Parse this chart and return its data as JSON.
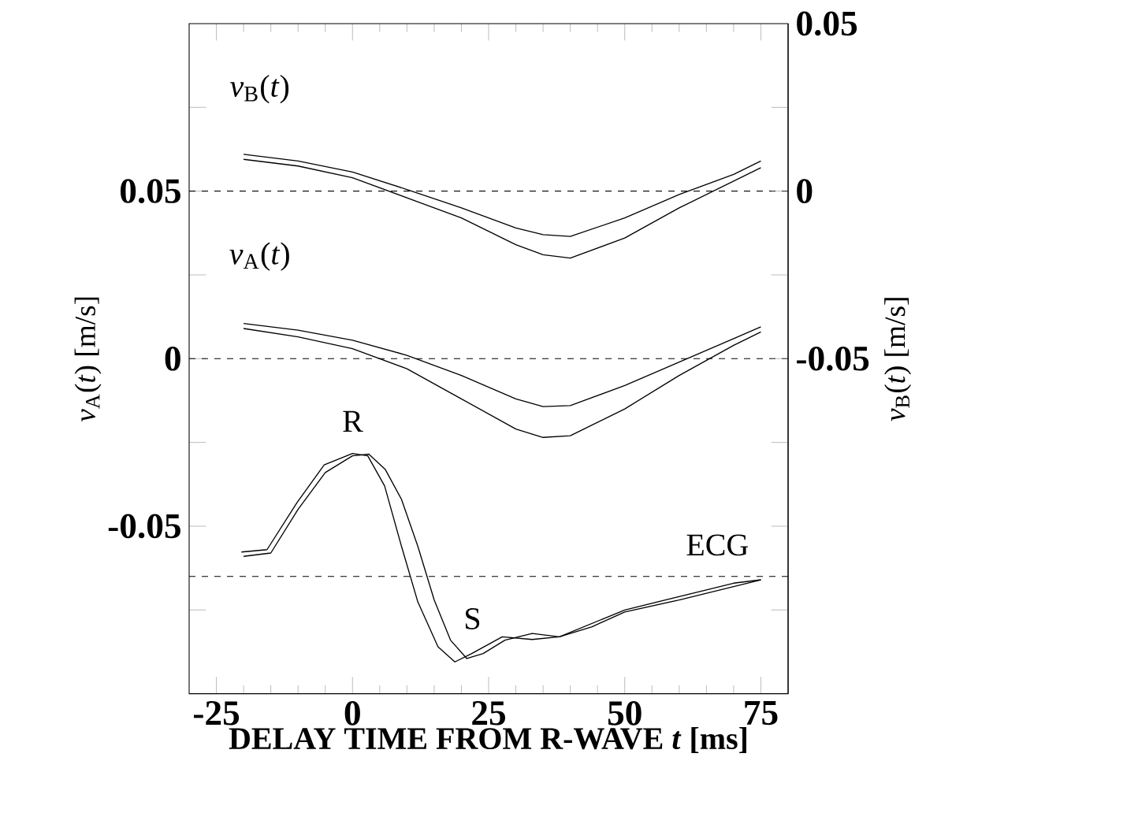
{
  "chart_data": {
    "type": "line",
    "xlabel": "DELAY TIME FROM R-WAVE *t* [ms]",
    "ylabel": "*v*$_{A}$(*t*) [m/s]",
    "y2label": "*v*$_{B}$(*t*) [m/s]",
    "xlim": [
      -30,
      80
    ],
    "xticks": [
      -25,
      0,
      25,
      50,
      75
    ],
    "ylim": [
      -0.1,
      0.1
    ],
    "yticks": [
      {
        "value": -0.075,
        "label": null
      },
      -0.05,
      {
        "value": -0.025,
        "label": null
      },
      0,
      {
        "value": 0.025,
        "label": null
      },
      0.05,
      {
        "value": 0.075,
        "label": null
      }
    ],
    "y2lim": [
      -0.15,
      0.05
    ],
    "y2ticks": [
      {
        "value": -0.125,
        "label": null
      },
      {
        "value": -0.1,
        "label": null
      },
      {
        "value": -0.075,
        "label": null
      },
      -0.05,
      {
        "value": -0.025,
        "label": null
      },
      0,
      {
        "value": 0.025,
        "label": null
      },
      0.05
    ],
    "series": [
      {
        "color": "#000000",
        "axis": "y2",
        "x": [
          -20,
          -10,
          0,
          10,
          20,
          30,
          35,
          40,
          50,
          60,
          70,
          75
        ],
        "values": [
          0.011,
          0.009,
          0.0057,
          0.0005,
          -0.005,
          -0.011,
          -0.013,
          -0.0135,
          -0.008,
          -0.001,
          0.005,
          0.009
        ]
      },
      {
        "color": "#000000",
        "axis": "y2",
        "x": [
          -20,
          -10,
          0,
          10,
          20,
          30,
          35,
          40,
          50,
          60,
          70,
          75
        ],
        "values": [
          0.0095,
          0.0075,
          0.004,
          -0.002,
          -0.008,
          -0.016,
          -0.019,
          -0.02,
          -0.014,
          -0.005,
          0.003,
          0.007
        ]
      },
      {
        "color": "#000000",
        "x": [
          -20,
          -10,
          0,
          10,
          20,
          30,
          35,
          40,
          50,
          60,
          70,
          75
        ],
        "values": [
          0.0105,
          0.0085,
          0.0055,
          0.001,
          -0.005,
          -0.012,
          -0.0143,
          -0.014,
          -0.008,
          -0.001,
          0.006,
          0.0095
        ]
      },
      {
        "color": "#000000",
        "x": [
          -20,
          -10,
          0,
          10,
          20,
          30,
          35,
          40,
          50,
          60,
          70,
          75
        ],
        "values": [
          0.009,
          0.0065,
          0.003,
          -0.003,
          -0.012,
          -0.021,
          -0.0235,
          -0.023,
          -0.015,
          -0.005,
          0.004,
          0.008
        ]
      },
      {
        "color": "#000000",
        "x": [
          -20.4,
          -15.7,
          -10.2,
          -5.2,
          0,
          2.8,
          5.9,
          9,
          12,
          15.7,
          18.8,
          21.9,
          27.5,
          33,
          38,
          44,
          50,
          60,
          70,
          75
        ],
        "values": [
          -0.0577,
          -0.057,
          -0.043,
          -0.0317,
          -0.0283,
          -0.029,
          -0.038,
          -0.056,
          -0.0726,
          -0.086,
          -0.0905,
          -0.088,
          -0.083,
          -0.0838,
          -0.083,
          -0.08,
          -0.0756,
          -0.072,
          -0.068,
          -0.066
        ]
      },
      {
        "color": "#000000",
        "x": [
          -20,
          -15,
          -10,
          -5,
          0,
          3,
          6,
          9,
          12,
          15,
          18,
          21,
          24,
          28,
          33,
          38,
          44,
          50,
          60,
          70,
          75
        ],
        "values": [
          -0.059,
          -0.058,
          -0.045,
          -0.034,
          -0.029,
          -0.0285,
          -0.033,
          -0.042,
          -0.056,
          -0.072,
          -0.084,
          -0.0895,
          -0.088,
          -0.084,
          -0.082,
          -0.083,
          -0.079,
          -0.075,
          -0.071,
          -0.067,
          -0.066
        ]
      }
    ],
    "ref_lines": [
      {
        "axis": "y",
        "value": 0.05,
        "line_style": "dashed"
      },
      {
        "axis": "y",
        "value": 0,
        "line_style": "dashed"
      },
      {
        "axis": "y",
        "value": -0.065,
        "line_style": "dashed"
      }
    ],
    "annotations": [
      "*v*$_{B}$(*t*)",
      "*v*$_{A}$(*t*)",
      "R",
      "S",
      "ECG"
    ],
    "grid": false
  }
}
